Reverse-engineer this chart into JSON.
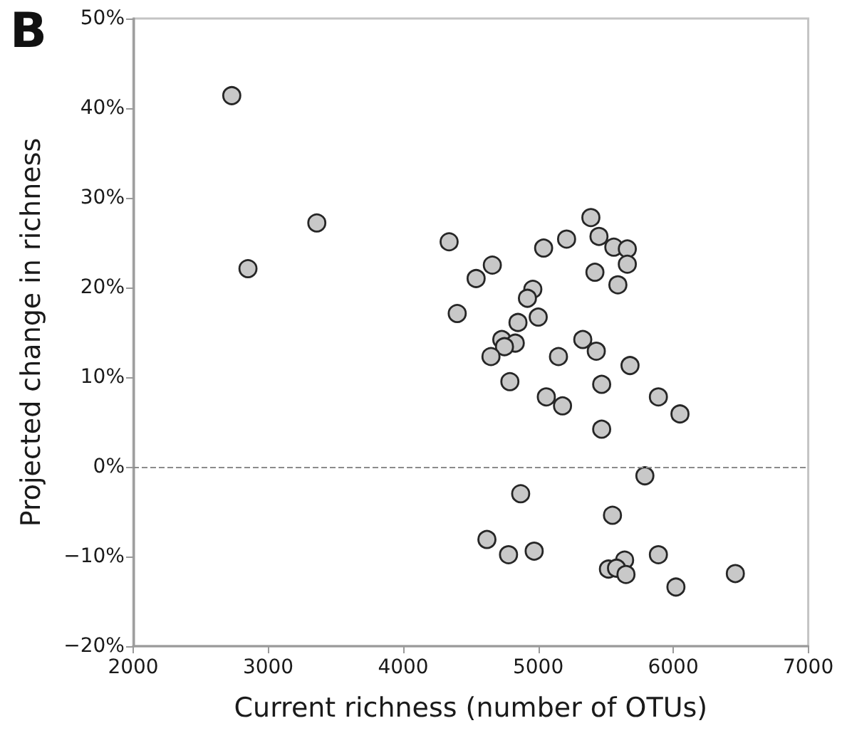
{
  "chart_data": {
    "type": "scatter",
    "title": "B",
    "xlabel": "Current richness (number of OTUs)",
    "ylabel": "Projected change in richness",
    "x": [
      2730,
      2850,
      3360,
      4340,
      4660,
      4540,
      4400,
      5390,
      5210,
      5040,
      5450,
      5560,
      5660,
      5660,
      5420,
      5590,
      4960,
      4920,
      5000,
      4850,
      4730,
      4830,
      4750,
      4650,
      5150,
      5330,
      5430,
      5680,
      4790,
      5470,
      5890,
      6050,
      5060,
      5180,
      5470,
      5790,
      4870,
      5550,
      4620,
      4780,
      4970,
      5890,
      5640,
      5520,
      5580,
      5650,
      6020,
      6460
    ],
    "values": [
      41.4,
      22.1,
      27.2,
      25.1,
      22.5,
      21.0,
      17.1,
      27.8,
      25.4,
      24.4,
      25.7,
      24.5,
      24.3,
      22.6,
      21.7,
      20.3,
      19.8,
      18.8,
      16.7,
      16.1,
      14.2,
      13.8,
      13.4,
      12.3,
      12.3,
      14.2,
      12.9,
      11.3,
      9.5,
      9.2,
      7.8,
      5.9,
      7.8,
      6.8,
      4.2,
      -1.0,
      -3.0,
      -5.4,
      -8.1,
      -9.8,
      -9.4,
      -9.8,
      -10.4,
      -11.4,
      -11.3,
      -12.0,
      -13.4,
      -11.9
    ],
    "color": "#c8c8c8",
    "marker": "circle",
    "xlim": [
      2000,
      7000
    ],
    "xticks": [
      2000,
      3000,
      4000,
      5000,
      6000,
      7000
    ],
    "ylim": [
      -20,
      50
    ],
    "yticks": [
      {
        "value": -20,
        "label": "−20%"
      },
      {
        "value": -10,
        "label": "−10%"
      },
      {
        "value": 0,
        "label": "0%"
      },
      {
        "value": 10,
        "label": "10%"
      },
      {
        "value": 20,
        "label": "20%"
      },
      {
        "value": 30,
        "label": "30%"
      },
      {
        "value": 40,
        "label": "40%"
      },
      {
        "value": 50,
        "label": "50%"
      }
    ],
    "ref_lines": [
      {
        "axis": "y",
        "value": 0,
        "color": "#8c8c8c",
        "line_style": "dashed"
      }
    ]
  }
}
